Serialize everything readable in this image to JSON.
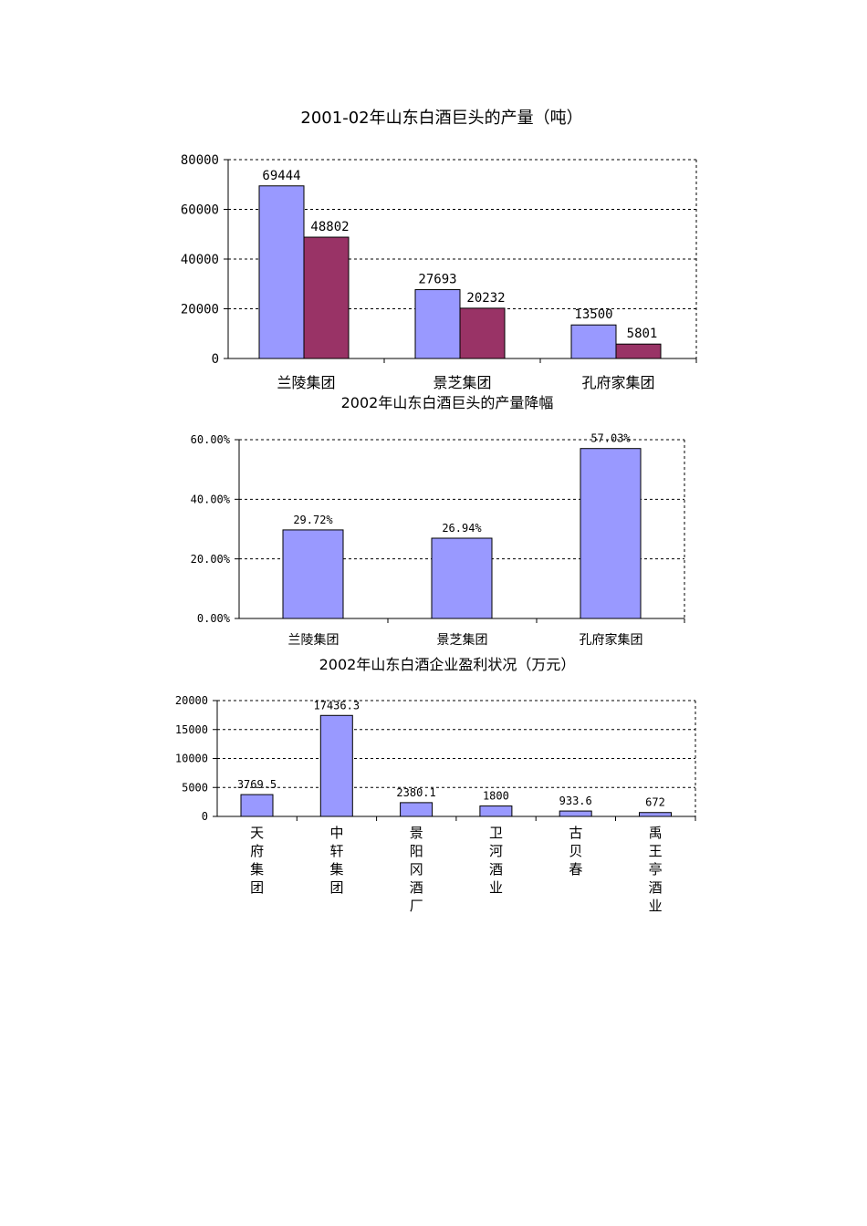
{
  "chart_data": [
    {
      "type": "bar",
      "title": "2001-02年山东白酒巨头的产量（吨）",
      "categories": [
        "兰陵集团",
        "景芝集团",
        "孔府家集团"
      ],
      "series": [
        {
          "values": [
            69444,
            27693,
            13500
          ],
          "labels": [
            "69444",
            "27693",
            "13500"
          ]
        },
        {
          "values": [
            48802,
            20232,
            5801
          ],
          "labels": [
            "48802",
            "20232",
            "5801"
          ]
        }
      ],
      "yticks": [
        "0",
        "20000",
        "40000",
        "60000",
        "80000"
      ],
      "ylim": [
        0,
        80000
      ],
      "grid": true,
      "colors": [
        "#9999ff",
        "#993366"
      ]
    },
    {
      "type": "bar",
      "title": "2002年山东白酒巨头的产量降幅",
      "categories": [
        "兰陵集团",
        "景芝集团",
        "孔府家集团"
      ],
      "series": [
        {
          "values": [
            29.72,
            26.94,
            57.03
          ],
          "labels": [
            "29.72%",
            "26.94%",
            "57.03%"
          ]
        }
      ],
      "yticks": [
        "0.00%",
        "20.00%",
        "40.00%",
        "60.00%"
      ],
      "ylim": [
        0,
        60
      ],
      "grid": true,
      "colors": [
        "#9999ff"
      ]
    },
    {
      "type": "bar",
      "title": "2002年山东白酒企业盈利状况（万元）",
      "categories": [
        "天府集团",
        "中轩集团",
        "景阳冈酒厂",
        "卫河酒业",
        "古贝春",
        "禹王亭酒业"
      ],
      "series": [
        {
          "values": [
            3769.5,
            17436.3,
            2380.1,
            1800,
            933.6,
            672
          ],
          "labels": [
            "3769.5",
            "17436.3",
            "2380.1",
            "1800",
            "933.6",
            "672"
          ]
        }
      ],
      "yticks": [
        "0",
        "5000",
        "10000",
        "15000",
        "20000"
      ],
      "ylim": [
        0,
        20000
      ],
      "grid": true,
      "vertical_category_labels": true,
      "colors": [
        "#9999ff"
      ]
    }
  ]
}
